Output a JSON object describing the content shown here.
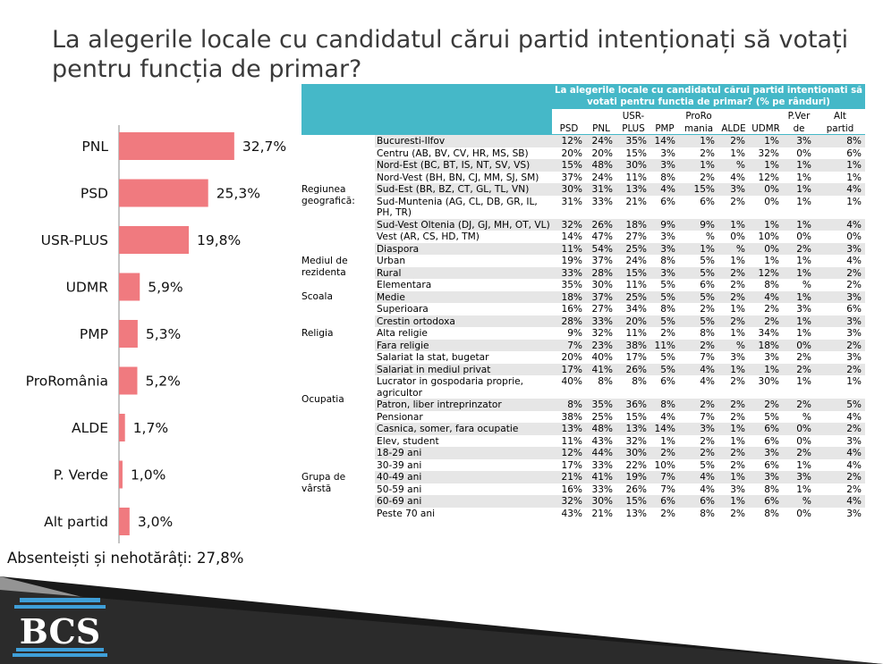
{
  "title": "La alegerile locale cu candidatul cărui partid intenționați să votați pentru funcția de primar?",
  "chart_data": {
    "type": "bar",
    "orientation": "horizontal",
    "categories": [
      "PNL",
      "PSD",
      "USR-PLUS",
      "UDMR",
      "PMP",
      "ProRomânia",
      "ALDE",
      "P. Verde",
      "Alt partid"
    ],
    "values": [
      32.7,
      25.3,
      19.8,
      5.9,
      5.3,
      5.2,
      1.7,
      1.0,
      3.0
    ],
    "value_labels": [
      "32,7%",
      "25,3%",
      "19,8%",
      "5,9%",
      "5,3%",
      "5,2%",
      "1,7%",
      "1,0%",
      "3,0%"
    ],
    "xlim": [
      0,
      35
    ],
    "color": "#f07a7f",
    "grid": false
  },
  "absent_note": "Absenteiști și nehotărâți: 27,8%",
  "table": {
    "question": "La alegerile locale cu candidatul cărui partid intentionati să votati pentru functia de primar? (% pe rânduri)",
    "columns": [
      [
        "PSD"
      ],
      [
        "PNL"
      ],
      [
        "USR-",
        "PLUS"
      ],
      [
        "PMP"
      ],
      [
        "ProRo",
        "mania"
      ],
      [
        "ALDE"
      ],
      [
        "UDMR"
      ],
      [
        "P.Ver",
        "de"
      ],
      [
        "Alt",
        "partid"
      ]
    ],
    "groups": [
      {
        "name": "Regiunea geografică:",
        "rows": [
          {
            "label": "Bucuresti-Ilfov",
            "values": [
              "12%",
              "24%",
              "35%",
              "14%",
              "1%",
              "2%",
              "1%",
              "3%",
              "8%"
            ]
          },
          {
            "label": "Centru (AB, BV, CV, HR, MS, SB)",
            "values": [
              "20%",
              "20%",
              "15%",
              "3%",
              "2%",
              "1%",
              "32%",
              "0%",
              "6%"
            ]
          },
          {
            "label": "Nord-Est (BC, BT, IS, NT, SV, VS)",
            "values": [
              "15%",
              "48%",
              "30%",
              "3%",
              "1%",
              "%",
              "1%",
              "1%",
              "1%"
            ]
          },
          {
            "label": "Nord-Vest (BH, BN, CJ, MM, SJ, SM)",
            "values": [
              "37%",
              "24%",
              "11%",
              "8%",
              "2%",
              "4%",
              "12%",
              "1%",
              "1%"
            ]
          },
          {
            "label": "Sud-Est (BR, BZ, CT, GL, TL, VN)",
            "values": [
              "30%",
              "31%",
              "13%",
              "4%",
              "15%",
              "3%",
              "0%",
              "1%",
              "4%"
            ]
          },
          {
            "label": "Sud-Muntenia (AG, CL, DB, GR, IL, PH, TR)",
            "values": [
              "31%",
              "33%",
              "21%",
              "6%",
              "6%",
              "2%",
              "0%",
              "1%",
              "1%"
            ]
          },
          {
            "label": "Sud-Vest Oltenia (DJ, GJ, MH, OT, VL)",
            "values": [
              "32%",
              "26%",
              "18%",
              "9%",
              "9%",
              "1%",
              "1%",
              "1%",
              "4%"
            ]
          },
          {
            "label": "Vest (AR, CS, HD, TM)",
            "values": [
              "14%",
              "47%",
              "27%",
              "3%",
              "%",
              "0%",
              "10%",
              "0%",
              "0%"
            ]
          },
          {
            "label": "Diaspora",
            "values": [
              "11%",
              "54%",
              "25%",
              "3%",
              "1%",
              "%",
              "0%",
              "2%",
              "3%"
            ]
          }
        ]
      },
      {
        "name": "Mediul de rezidenta",
        "rows": [
          {
            "label": "Urban",
            "values": [
              "19%",
              "37%",
              "24%",
              "8%",
              "5%",
              "1%",
              "1%",
              "1%",
              "4%"
            ]
          },
          {
            "label": "Rural",
            "values": [
              "33%",
              "28%",
              "15%",
              "3%",
              "5%",
              "2%",
              "12%",
              "1%",
              "2%"
            ]
          }
        ]
      },
      {
        "name": "Scoala",
        "rows": [
          {
            "label": "Elementara",
            "values": [
              "35%",
              "30%",
              "11%",
              "5%",
              "6%",
              "2%",
              "8%",
              "%",
              "2%"
            ]
          },
          {
            "label": "Medie",
            "values": [
              "18%",
              "37%",
              "25%",
              "5%",
              "5%",
              "2%",
              "4%",
              "1%",
              "3%"
            ]
          },
          {
            "label": "Superioara",
            "values": [
              "16%",
              "27%",
              "34%",
              "8%",
              "2%",
              "1%",
              "2%",
              "3%",
              "6%"
            ]
          }
        ]
      },
      {
        "name": "Religia",
        "rows": [
          {
            "label": "Crestin ortodoxa",
            "values": [
              "28%",
              "33%",
              "20%",
              "5%",
              "5%",
              "2%",
              "2%",
              "1%",
              "3%"
            ]
          },
          {
            "label": "Alta religie",
            "values": [
              "9%",
              "32%",
              "11%",
              "2%",
              "8%",
              "1%",
              "34%",
              "1%",
              "3%"
            ]
          },
          {
            "label": "Fara religie",
            "values": [
              "7%",
              "23%",
              "38%",
              "11%",
              "2%",
              "%",
              "18%",
              "0%",
              "2%"
            ]
          }
        ]
      },
      {
        "name": "Ocupatia",
        "rows": [
          {
            "label": "Salariat la stat, bugetar",
            "values": [
              "20%",
              "40%",
              "17%",
              "5%",
              "7%",
              "3%",
              "3%",
              "2%",
              "3%"
            ]
          },
          {
            "label": "Salariat in mediul privat",
            "values": [
              "17%",
              "41%",
              "26%",
              "5%",
              "4%",
              "1%",
              "1%",
              "2%",
              "2%"
            ]
          },
          {
            "label": "Lucrator in gospodaria proprie, agricultor",
            "values": [
              "40%",
              "8%",
              "8%",
              "6%",
              "4%",
              "2%",
              "30%",
              "1%",
              "1%"
            ]
          },
          {
            "label": "Patron, liber intreprinzator",
            "values": [
              "8%",
              "35%",
              "36%",
              "8%",
              "2%",
              "2%",
              "2%",
              "2%",
              "5%"
            ]
          },
          {
            "label": "Pensionar",
            "values": [
              "38%",
              "25%",
              "15%",
              "4%",
              "7%",
              "2%",
              "5%",
              "%",
              "4%"
            ]
          },
          {
            "label": "Casnica, somer, fara ocupatie",
            "values": [
              "13%",
              "48%",
              "13%",
              "14%",
              "3%",
              "1%",
              "6%",
              "0%",
              "2%"
            ]
          },
          {
            "label": "Elev, student",
            "values": [
              "11%",
              "43%",
              "32%",
              "1%",
              "2%",
              "1%",
              "6%",
              "0%",
              "3%"
            ]
          }
        ]
      },
      {
        "name": "Grupa de vârstă",
        "rows": [
          {
            "label": "18-29 ani",
            "values": [
              "12%",
              "44%",
              "30%",
              "2%",
              "2%",
              "2%",
              "3%",
              "2%",
              "4%"
            ]
          },
          {
            "label": "30-39 ani",
            "values": [
              "17%",
              "33%",
              "22%",
              "10%",
              "5%",
              "2%",
              "6%",
              "1%",
              "4%"
            ]
          },
          {
            "label": "40-49 ani",
            "values": [
              "21%",
              "41%",
              "19%",
              "7%",
              "4%",
              "1%",
              "3%",
              "3%",
              "2%"
            ]
          },
          {
            "label": "50-59 ani",
            "values": [
              "16%",
              "33%",
              "26%",
              "7%",
              "4%",
              "3%",
              "8%",
              "1%",
              "2%"
            ]
          },
          {
            "label": "60-69 ani",
            "values": [
              "32%",
              "30%",
              "15%",
              "6%",
              "6%",
              "1%",
              "6%",
              "%",
              "4%"
            ]
          },
          {
            "label": "Peste 70 ani",
            "values": [
              "43%",
              "21%",
              "13%",
              "2%",
              "8%",
              "2%",
              "8%",
              "0%",
              "3%"
            ]
          }
        ]
      }
    ]
  },
  "logo_text": "BCS"
}
